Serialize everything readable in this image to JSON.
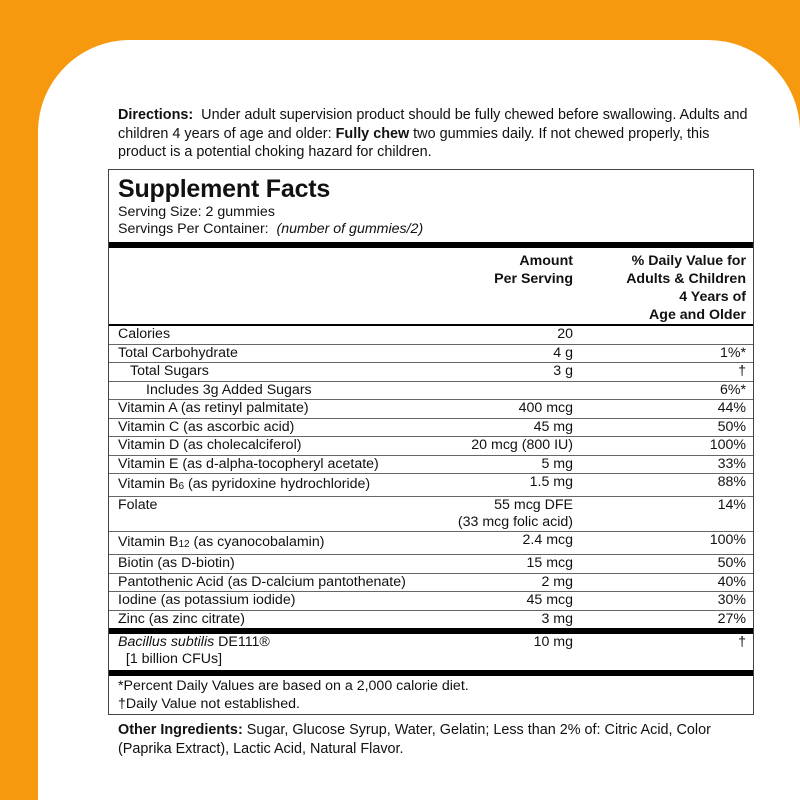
{
  "colors": {
    "background": "#f7990f",
    "panel": "#ffffff"
  },
  "directions": {
    "label": "Directions:",
    "text1": "Under adult supervision product should be fully chewed before swallowing. Adults and children 4 years of age and older: ",
    "bold": "Fully chew",
    "text2": " two gummies daily. If not chewed properly, this product is a potential choking hazard for children."
  },
  "facts": {
    "title": "Supplement Facts",
    "serving_size": "Serving Size:  2 gummies",
    "servings_label": "Servings Per Container:",
    "servings_value": "(number of gummies/2)",
    "header_amount_1": "Amount",
    "header_amount_2": "Per Serving",
    "header_dv_1": "% Daily Value for",
    "header_dv_2": "Adults & Children",
    "header_dv_3": "4 Years of",
    "header_dv_4": "Age and Older",
    "rows": [
      {
        "name": "Calories",
        "amount": "20",
        "dv": ""
      },
      {
        "name": "Total Carbohydrate",
        "amount": "4 g",
        "dv": "1%*"
      },
      {
        "name": "Total Sugars",
        "amount": "3 g",
        "dv": "†"
      },
      {
        "name": "Includes 3g Added Sugars",
        "amount": "",
        "dv": "6%*"
      },
      {
        "name": "Vitamin A (as retinyl palmitate)",
        "amount": "400 mcg",
        "dv": "44%"
      },
      {
        "name": "Vitamin C (as ascorbic acid)",
        "amount": "45 mg",
        "dv": "50%"
      },
      {
        "name": "Vitamin D (as cholecalciferol)",
        "amount": "20 mcg (800 IU)",
        "dv": "100%"
      },
      {
        "name": "Vitamin E (as d-alpha-tocopheryl acetate)",
        "amount": "5 mg",
        "dv": "33%"
      },
      {
        "name_a": "Vitamin B",
        "name_sub": "6",
        "name_b": " (as pyridoxine hydrochloride)",
        "amount": "1.5 mg",
        "dv": "88%"
      },
      {
        "name": "Folate",
        "amount": "55 mcg DFE",
        "amount2": "(33 mcg folic acid)",
        "dv": "14%"
      },
      {
        "name_a": "Vitamin B",
        "name_sub": "12",
        "name_b": " (as cyanocobalamin)",
        "amount": "2.4 mcg",
        "dv": "100%"
      },
      {
        "name": "Biotin (as D-biotin)",
        "amount": "15 mcg",
        "dv": "50%"
      },
      {
        "name": "Pantothenic Acid (as D-calcium pantothenate)",
        "amount": "2 mg",
        "dv": "40%"
      },
      {
        "name": "Iodine (as potassium iodide)",
        "amount": "45 mcg",
        "dv": "30%"
      },
      {
        "name": "Zinc (as zinc citrate)",
        "amount": "3 mg",
        "dv": "27%"
      }
    ],
    "probiotic": {
      "name_italic": "Bacillus subtilis",
      "name_rest": " DE111®",
      "name2": "[1 billion CFUs]",
      "amount": "10 mg",
      "dv": "†"
    },
    "footnote1": "*Percent Daily Values are based on a 2,000 calorie diet.",
    "footnote2": "†Daily Value not established."
  },
  "other": {
    "label": "Other Ingredients:",
    "text": " Sugar, Glucose Syrup, Water, Gelatin; Less than 2% of: Citric Acid, Color (Paprika Extract), Lactic Acid, Natural Flavor."
  }
}
